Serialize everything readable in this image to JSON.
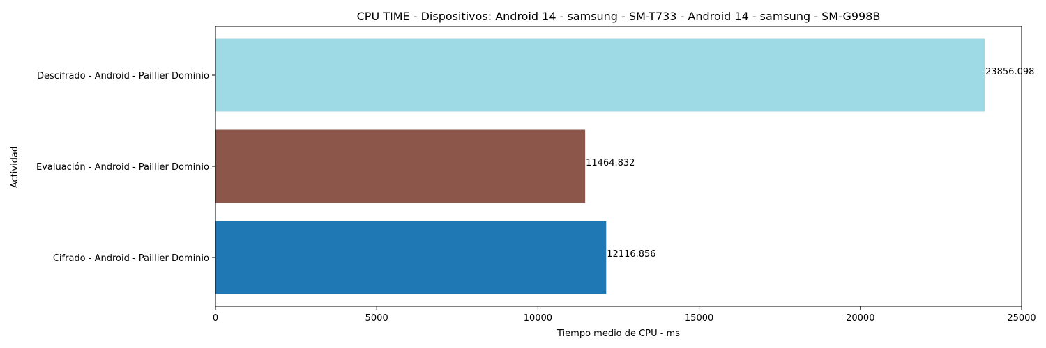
{
  "chart_data": {
    "type": "bar",
    "orientation": "horizontal",
    "title": "CPU TIME - Dispositivos: Android 14 - samsung - SM-T733 - Android 14 - samsung - SM-G998B",
    "xlabel": "Tiempo medio de CPU - ms",
    "ylabel": "Actividad",
    "xlim": [
      0,
      25000
    ],
    "xticks": [
      0,
      5000,
      10000,
      15000,
      20000,
      25000
    ],
    "grid": false,
    "categories": [
      "Descifrado - Android - Paillier Dominio",
      "Evaluación - Android - Paillier Dominio",
      "Cifrado - Android - Paillier Dominio"
    ],
    "values": [
      23856.098,
      11464.832,
      12116.856
    ],
    "value_labels": [
      "23856.098",
      "11464.832",
      "12116.856"
    ],
    "colors": [
      "#9edae5",
      "#8c564b",
      "#1f77b4"
    ]
  }
}
